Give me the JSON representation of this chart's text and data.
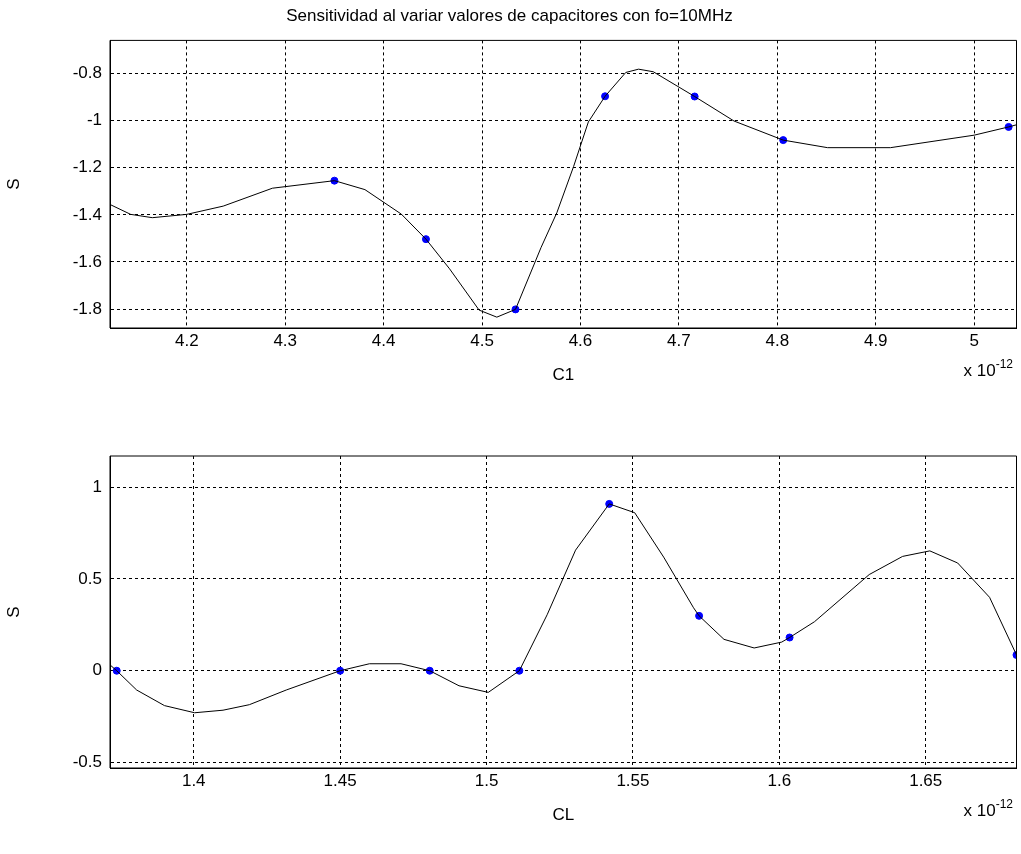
{
  "chart_data": [
    {
      "type": "line",
      "title": "Sensitividad al variar valores de capacitores con fo=10MHz",
      "xlabel": "C1",
      "ylabel": "S",
      "annotations": [
        "x 10$^{-12}$"
      ],
      "grid": true,
      "xlim": [
        4.122,
        5.043
      ],
      "xticks": [
        4.2,
        4.3,
        4.4,
        4.5,
        4.6,
        4.7,
        4.8,
        4.9,
        5
      ],
      "ylim": [
        -1.88,
        -0.66
      ],
      "yticks": [
        -1.8,
        -1.6,
        -1.4,
        -1.2,
        -1,
        -0.8
      ],
      "series": [
        {
          "type": "line",
          "color": "#000000",
          "marker": "none",
          "x": [
            4.122,
            4.143,
            4.165,
            4.2,
            4.237,
            4.287,
            4.35,
            4.381,
            4.418,
            4.443,
            4.467,
            4.497,
            4.515,
            4.534,
            4.56,
            4.576,
            4.593,
            4.608,
            4.625,
            4.646,
            4.659,
            4.674,
            4.716,
            4.756,
            4.806,
            4.851,
            4.915,
            5.0,
            5.035,
            5.043
          ],
          "values": [
            -1.356,
            -1.398,
            -1.412,
            -1.398,
            -1.363,
            -1.287,
            -1.255,
            -1.293,
            -1.397,
            -1.503,
            -1.629,
            -1.804,
            -1.834,
            -1.801,
            -1.538,
            -1.391,
            -1.195,
            -1.006,
            -0.897,
            -0.796,
            -0.782,
            -0.793,
            -0.898,
            -1.002,
            -1.083,
            -1.115,
            -1.115,
            -1.062,
            -1.027,
            -1.018
          ]
        },
        {
          "type": "scatter",
          "color": "#0000ff",
          "marker": "circle",
          "x": [
            4.35,
            4.443,
            4.534,
            4.625,
            4.716,
            4.806,
            5.035
          ],
          "values": [
            -1.255,
            -1.503,
            -1.801,
            -0.897,
            -0.898,
            -1.083,
            -1.027
          ]
        }
      ]
    },
    {
      "type": "line",
      "xlabel": "CL",
      "ylabel": "S",
      "annotations": [
        "x 10$^{-12}$"
      ],
      "grid": true,
      "xlim": [
        1.3714,
        1.681
      ],
      "xticks": [
        1.4,
        1.45,
        1.5,
        1.55,
        1.6,
        1.65
      ],
      "ylim": [
        -0.53,
        1.17
      ],
      "yticks": [
        -0.5,
        0,
        0.5,
        1
      ],
      "series": [
        {
          "type": "line",
          "color": "#000000",
          "marker": "none",
          "x": [
            1.3714,
            1.3737,
            1.3805,
            1.39,
            1.4003,
            1.41,
            1.419,
            1.4316,
            1.45,
            1.46,
            1.4708,
            1.4806,
            1.4906,
            1.5006,
            1.5112,
            1.5207,
            1.5304,
            1.5419,
            1.5506,
            1.5605,
            1.5707,
            1.5726,
            1.5811,
            1.5914,
            1.6008,
            1.6035,
            1.612,
            1.6307,
            1.6421,
            1.6514,
            1.6609,
            1.6718,
            1.681
          ],
          "values": [
            0.032,
            0,
            -0.105,
            -0.19,
            -0.229,
            -0.215,
            -0.185,
            -0.105,
            0,
            0.038,
            0.038,
            0,
            -0.082,
            -0.118,
            0,
            0.305,
            0.657,
            0.909,
            0.861,
            0.619,
            0.343,
            0.299,
            0.171,
            0.124,
            0.156,
            0.181,
            0.267,
            0.524,
            0.623,
            0.653,
            0.587,
            0.4,
            0.086
          ]
        },
        {
          "type": "scatter",
          "color": "#0000ff",
          "marker": "circle",
          "x": [
            1.3737,
            1.45,
            1.4806,
            1.5112,
            1.5419,
            1.5726,
            1.6035,
            1.681
          ],
          "values": [
            0,
            0,
            0,
            0,
            0.909,
            0.299,
            0.181,
            0.086
          ]
        }
      ]
    }
  ]
}
